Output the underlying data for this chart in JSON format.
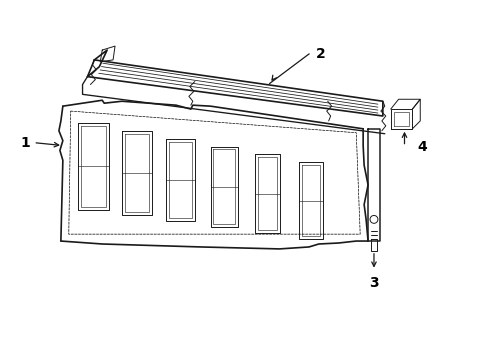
{
  "bg_color": "#ffffff",
  "line_color": "#1a1a1a",
  "label_color": "#000000",
  "figsize": [
    4.9,
    3.6
  ],
  "dpi": 100,
  "lw_main": 1.2,
  "lw_thin": 0.7,
  "label_fontsize": 10
}
